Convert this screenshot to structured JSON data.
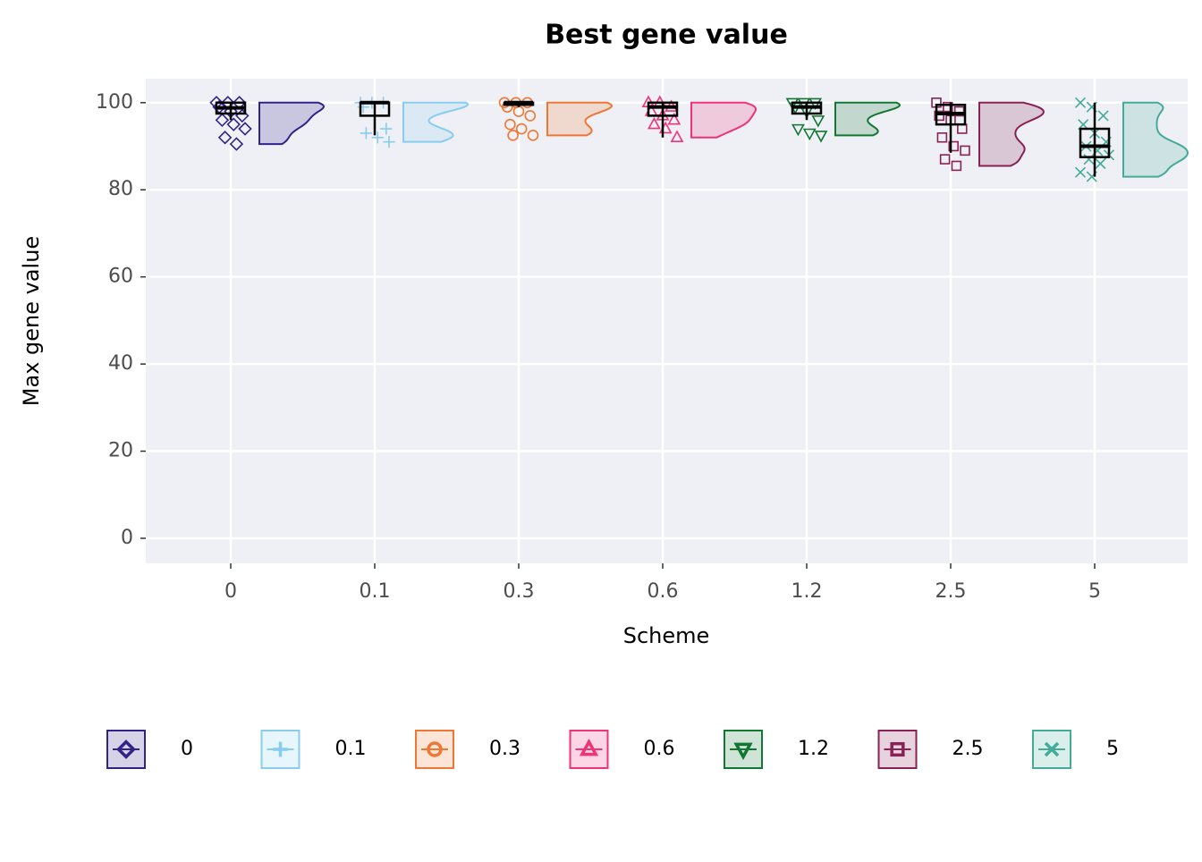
{
  "chart_data": {
    "type": "raincloud",
    "title": "Best gene value",
    "x_label": "Scheme",
    "y_label": "Max gene value",
    "categories": [
      "0",
      "0.1",
      "0.3",
      "0.6",
      "1.2",
      "2.5",
      "5"
    ],
    "ylim": [
      -5.75,
      105.5
    ],
    "yticks": [
      0,
      20,
      40,
      60,
      80,
      100
    ],
    "grid": true,
    "legend": "bottom",
    "series": [
      {
        "name": "0",
        "color": "#332288",
        "shape": "diamond",
        "box": {
          "min": 96,
          "q1": 97.5,
          "median": 98.8,
          "q3": 100,
          "max": 100
        },
        "points": [
          100,
          100,
          100,
          99,
          98,
          97,
          96,
          95,
          94,
          92,
          90.5
        ]
      },
      {
        "name": "0.1",
        "color": "#88CCEE",
        "shape": "plus",
        "box": {
          "min": 92.5,
          "q1": 97,
          "median": 100,
          "q3": 100,
          "max": 100
        },
        "points": [
          100,
          100,
          100,
          99,
          97,
          94,
          93,
          92,
          91
        ]
      },
      {
        "name": "0.3",
        "color": "#EE7733",
        "shape": "circle",
        "box": {
          "min": 99,
          "q1": 99.5,
          "median": 100,
          "q3": 100,
          "max": 100
        },
        "points": [
          100,
          100,
          100,
          99,
          98,
          97,
          95,
          94,
          92.5,
          92.5
        ]
      },
      {
        "name": "0.6",
        "color": "#EE3377",
        "shape": "triangle",
        "box": {
          "min": 92,
          "q1": 97,
          "median": 99,
          "q3": 100,
          "max": 100
        },
        "points": [
          100,
          100,
          99,
          98,
          97,
          96,
          95,
          94,
          92
        ]
      },
      {
        "name": "1.2",
        "color": "#117733",
        "shape": "triangle-down",
        "box": {
          "min": 96,
          "q1": 97.5,
          "median": 99,
          "q3": 100,
          "max": 100
        },
        "points": [
          100,
          100,
          100,
          99,
          98,
          96,
          94,
          93,
          92.5
        ]
      },
      {
        "name": "2.5",
        "color": "#882255",
        "shape": "square",
        "box": {
          "min": 88.5,
          "q1": 95,
          "median": 97.5,
          "q3": 99.5,
          "max": 100
        },
        "points": [
          100,
          99,
          98,
          97,
          96,
          94,
          92,
          90,
          89,
          87,
          85.5
        ]
      },
      {
        "name": "5",
        "color": "#44AA99",
        "shape": "cross",
        "box": {
          "min": 83,
          "q1": 87.5,
          "median": 90,
          "q3": 94,
          "max": 100
        },
        "points": [
          100,
          99,
          97,
          95,
          93,
          91,
          90,
          89,
          88,
          87,
          86,
          84,
          83
        ]
      }
    ]
  }
}
